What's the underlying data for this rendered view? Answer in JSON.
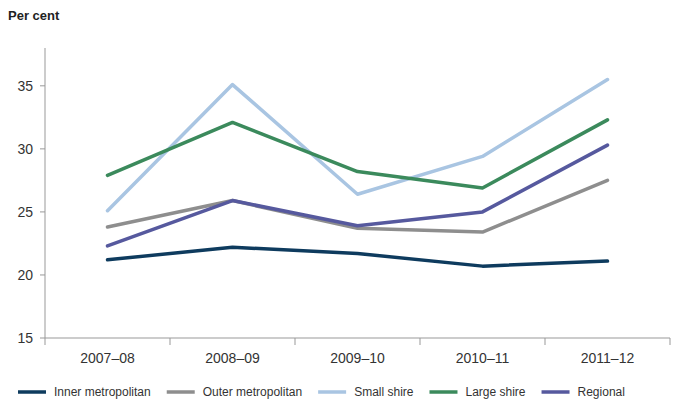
{
  "chart_data": {
    "type": "line",
    "y_label": "Per cent",
    "categories": [
      "2007–08",
      "2008–09",
      "2009–10",
      "2010–11",
      "2011–12"
    ],
    "series": [
      {
        "name": "Inner metropolitan",
        "color": "#0e3b5e",
        "values": [
          21.2,
          22.2,
          21.7,
          20.7,
          21.1
        ]
      },
      {
        "name": "Outer metropolitan",
        "color": "#8e8e8e",
        "values": [
          23.8,
          25.9,
          23.7,
          23.4,
          27.5
        ]
      },
      {
        "name": "Small shire",
        "color": "#a9c5e2",
        "values": [
          25.1,
          35.1,
          26.4,
          29.4,
          35.5
        ]
      },
      {
        "name": "Large shire",
        "color": "#3b8a5c",
        "values": [
          27.9,
          32.1,
          28.2,
          26.9,
          32.3
        ]
      },
      {
        "name": "Regional",
        "color": "#56599e",
        "values": [
          22.3,
          25.9,
          23.9,
          25.0,
          30.3
        ]
      }
    ],
    "ylim": [
      15,
      38
    ],
    "yticks": [
      15,
      20,
      25,
      30,
      35
    ],
    "grid": false,
    "legend": "bottom"
  }
}
